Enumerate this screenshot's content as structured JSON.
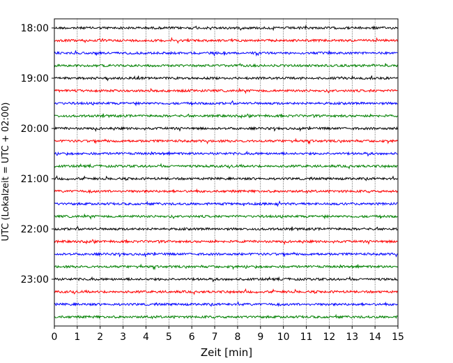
{
  "chart_data": {
    "type": "line",
    "xlabel": "Zeit  [min]",
    "ylabel": "UTC (Lokalzeit = UTC + 02:00)",
    "xlim": [
      0,
      15
    ],
    "x_ticks": [
      0,
      1,
      2,
      3,
      4,
      5,
      6,
      7,
      8,
      9,
      10,
      11,
      12,
      13,
      14,
      15
    ],
    "y_ticks": [
      {
        "label": "18:00",
        "value": "18:00"
      },
      {
        "label": "19:00",
        "value": "19:00"
      },
      {
        "label": "20:00",
        "value": "20:00"
      },
      {
        "label": "21:00",
        "value": "21:00"
      },
      {
        "label": "22:00",
        "value": "22:00"
      },
      {
        "label": "23:00",
        "value": "23:00"
      }
    ],
    "ylim": [
      "17:45",
      "23:59"
    ],
    "grid": {
      "x": true,
      "y": false
    },
    "line_colors": [
      "#000000",
      "#ff0000",
      "#0000ff",
      "#008000"
    ],
    "traces": [
      {
        "start": "18:00",
        "color": "#000000"
      },
      {
        "start": "18:15",
        "color": "#ff0000"
      },
      {
        "start": "18:30",
        "color": "#0000ff"
      },
      {
        "start": "18:45",
        "color": "#008000"
      },
      {
        "start": "19:00",
        "color": "#000000"
      },
      {
        "start": "19:15",
        "color": "#ff0000"
      },
      {
        "start": "19:30",
        "color": "#0000ff"
      },
      {
        "start": "19:45",
        "color": "#008000"
      },
      {
        "start": "20:00",
        "color": "#000000"
      },
      {
        "start": "20:15",
        "color": "#ff0000"
      },
      {
        "start": "20:30",
        "color": "#0000ff"
      },
      {
        "start": "20:45",
        "color": "#008000"
      },
      {
        "start": "21:00",
        "color": "#000000"
      },
      {
        "start": "21:15",
        "color": "#ff0000"
      },
      {
        "start": "21:30",
        "color": "#0000ff"
      },
      {
        "start": "21:45",
        "color": "#008000"
      },
      {
        "start": "22:00",
        "color": "#000000"
      },
      {
        "start": "22:15",
        "color": "#ff0000"
      },
      {
        "start": "22:30",
        "color": "#0000ff"
      },
      {
        "start": "22:45",
        "color": "#008000"
      },
      {
        "start": "23:00",
        "color": "#000000"
      },
      {
        "start": "23:15",
        "color": "#ff0000"
      },
      {
        "start": "23:30",
        "color": "#0000ff"
      },
      {
        "start": "23:45",
        "color": "#008000"
      }
    ]
  }
}
